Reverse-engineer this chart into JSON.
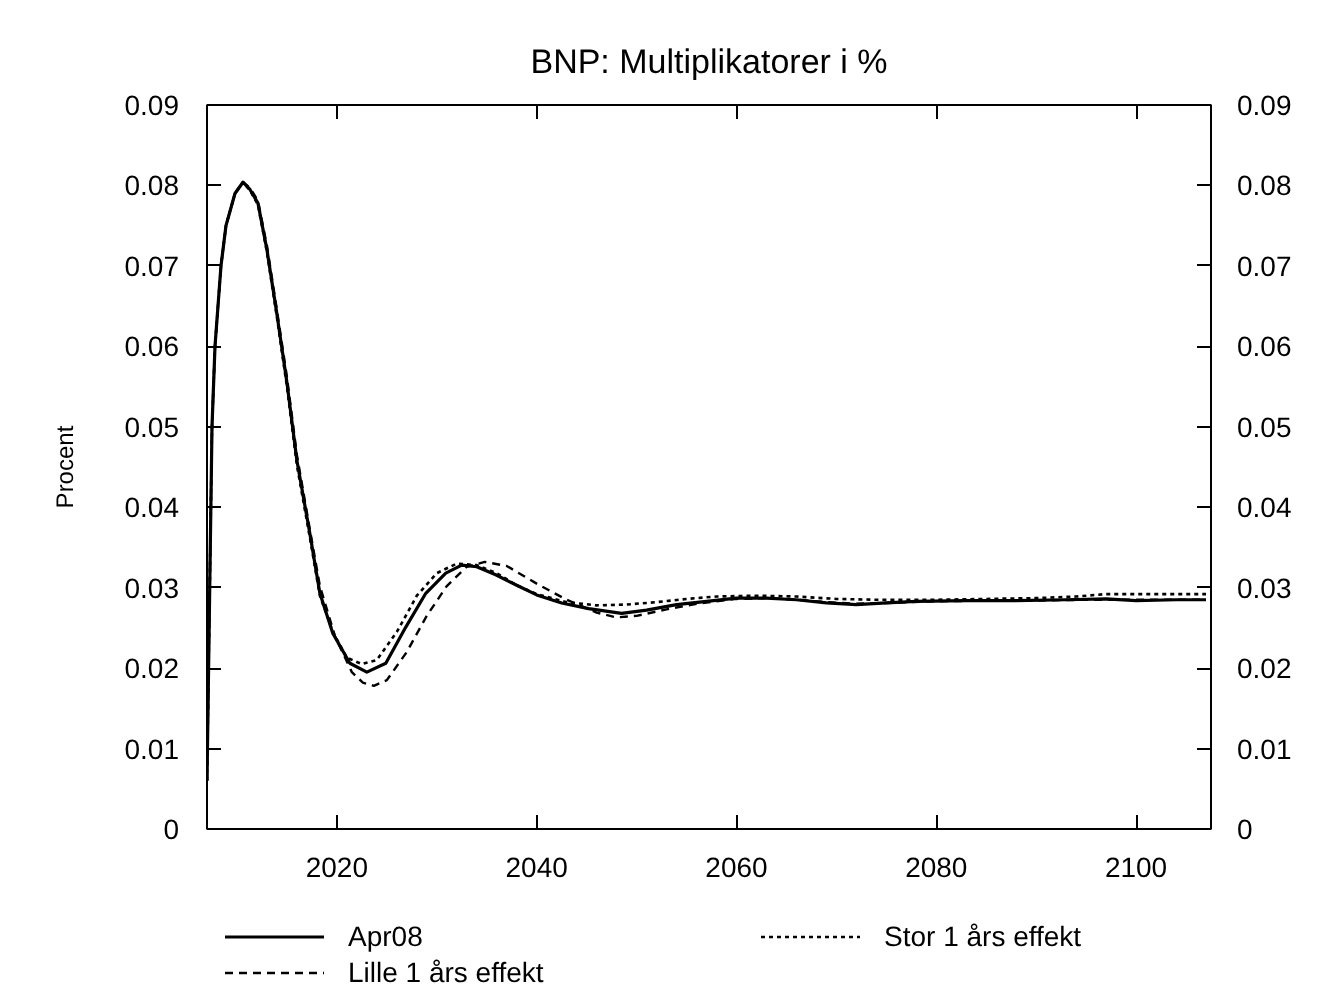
{
  "chart_data": {
    "type": "line",
    "title": "BNP: Multiplikatorer i %",
    "ylabel": "Procent",
    "xlim": [
      2007,
      2107.5
    ],
    "xticks": [
      2020,
      2040,
      2060,
      2080,
      2100
    ],
    "ylim": [
      0,
      0.09
    ],
    "yticks": [
      0,
      0.01,
      0.02,
      0.03,
      0.04,
      0.05,
      0.06,
      0.07,
      0.08,
      0.09
    ],
    "y2lim": [
      0,
      0.09
    ],
    "y2ticks": [
      0,
      0.01,
      0.02,
      0.03,
      0.04,
      0.05,
      0.06,
      0.07,
      0.08,
      0.09
    ],
    "legend": "bottom",
    "series": [
      {
        "name": "Apr08",
        "color": "#000000",
        "line_style": "solid",
        "x": [
          2007.0,
          2007.5,
          2007.8,
          2008.4,
          2008.9,
          2009.8,
          2010.6,
          2011.3,
          2012.1,
          2013.0,
          2014.0,
          2015.0,
          2016.0,
          2017.3,
          2018.3,
          2019.6,
          2021.3,
          2023.0,
          2024.9,
          2026.9,
          2028.9,
          2030.9,
          2032.5,
          2034.0,
          2035.9,
          2038.0,
          2040.0,
          2042.5,
          2045.2,
          2048.5,
          2051,
          2054,
          2057,
          2060,
          2063,
          2066,
          2069,
          2072,
          2075,
          2078,
          2083,
          2088,
          2093,
          2097,
          2100,
          2104,
          2107
        ],
        "values": [
          0.006,
          0.05,
          0.06,
          0.07,
          0.075,
          0.079,
          0.0804,
          0.0795,
          0.0778,
          0.072,
          0.064,
          0.0555,
          0.0458,
          0.0367,
          0.0293,
          0.0243,
          0.0206,
          0.0195,
          0.0206,
          0.0251,
          0.0293,
          0.0318,
          0.0328,
          0.0326,
          0.0316,
          0.0303,
          0.0291,
          0.0281,
          0.0274,
          0.0268,
          0.0272,
          0.0279,
          0.0283,
          0.0287,
          0.0287,
          0.0285,
          0.0281,
          0.0279,
          0.0281,
          0.0283,
          0.0284,
          0.0284,
          0.0285,
          0.0286,
          0.0284,
          0.0285,
          0.0285
        ]
      },
      {
        "name": "Lille 1 års effekt",
        "color": "#000000",
        "line_style": "dashed",
        "x": [
          2007.0,
          2007.5,
          2007.8,
          2008.4,
          2008.9,
          2009.8,
          2010.6,
          2011.3,
          2012.1,
          2013.0,
          2014.0,
          2015.0,
          2016.0,
          2017.3,
          2018.3,
          2019.8,
          2021.5,
          2022.6,
          2023.7,
          2025.0,
          2027.0,
          2029.0,
          2031.0,
          2033.0,
          2034.8,
          2037.0,
          2040.0,
          2043.0,
          2046.0,
          2048.0,
          2050.0,
          2053.0,
          2056.0,
          2060,
          2063,
          2066,
          2069,
          2072,
          2075,
          2080,
          2085,
          2090,
          2095,
          2100,
          2104,
          2107
        ],
        "values": [
          0.006,
          0.05,
          0.06,
          0.07,
          0.075,
          0.079,
          0.0804,
          0.0797,
          0.0781,
          0.0725,
          0.0645,
          0.0562,
          0.0465,
          0.0372,
          0.0302,
          0.024,
          0.0195,
          0.0182,
          0.0178,
          0.0185,
          0.022,
          0.0265,
          0.0302,
          0.0326,
          0.0332,
          0.0327,
          0.0305,
          0.0285,
          0.0269,
          0.0263,
          0.0265,
          0.0273,
          0.028,
          0.0286,
          0.0287,
          0.0285,
          0.0282,
          0.028,
          0.0281,
          0.0283,
          0.0284,
          0.0284,
          0.0285,
          0.0285,
          0.0285,
          0.0285
        ]
      },
      {
        "name": "Stor 1 års effekt",
        "color": "#000000",
        "line_style": "dotted",
        "x": [
          2007.0,
          2007.5,
          2007.8,
          2008.4,
          2008.9,
          2009.8,
          2010.6,
          2011.3,
          2012.1,
          2013.0,
          2014.0,
          2015.0,
          2016.0,
          2017.3,
          2018.3,
          2019.6,
          2021.0,
          2022.5,
          2024.0,
          2026.0,
          2028.0,
          2030.0,
          2032.0,
          2034.0,
          2036.0,
          2038.0,
          2040.0,
          2043.0,
          2046.0,
          2049.0,
          2052.0,
          2055.0,
          2058.0,
          2062,
          2066,
          2070,
          2074,
          2080,
          2085,
          2090,
          2094,
          2097,
          2100,
          2104,
          2107
        ],
        "values": [
          0.006,
          0.05,
          0.06,
          0.07,
          0.075,
          0.079,
          0.0804,
          0.0794,
          0.0776,
          0.0717,
          0.0636,
          0.055,
          0.0452,
          0.0362,
          0.029,
          0.0245,
          0.0213,
          0.0205,
          0.021,
          0.0245,
          0.029,
          0.0318,
          0.033,
          0.0328,
          0.0318,
          0.0303,
          0.0292,
          0.0282,
          0.0278,
          0.0279,
          0.0282,
          0.0286,
          0.0289,
          0.029,
          0.0289,
          0.0286,
          0.0285,
          0.0285,
          0.0286,
          0.0287,
          0.0289,
          0.0292,
          0.0292,
          0.0292,
          0.0292
        ]
      }
    ]
  }
}
